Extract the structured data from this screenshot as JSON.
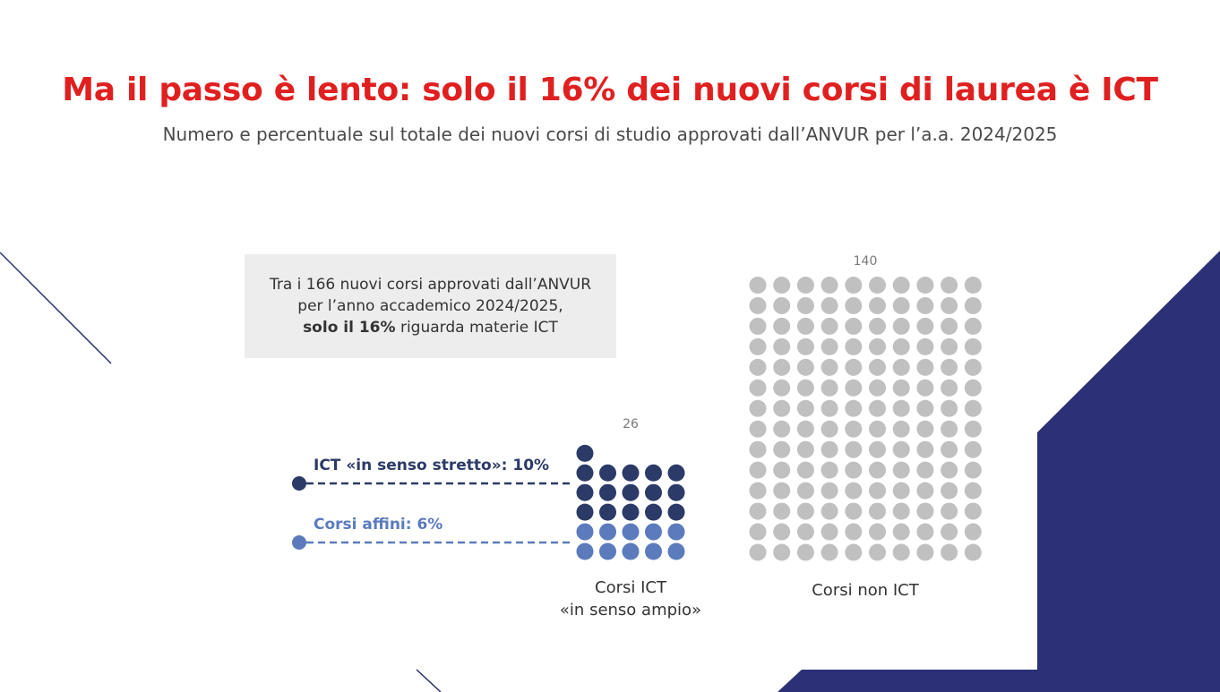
{
  "title": "Ma il passo è lento: solo il 16% dei nuovi corsi di laurea è ICT",
  "subtitle": "Numero e percentuale sul totale dei nuovi corsi di studio approvati dall’ANVUR per l’a.a. 2024/2025",
  "callout": {
    "line1": "Tra i 166 nuovi corsi approvati dall’ANVUR",
    "line2": "per l’anno accademico 2024/2025,",
    "line3_bold": "solo il 16%",
    "line3_rest": " riguarda materie ICT"
  },
  "colors": {
    "title": "#e02020",
    "ict_strict": "#2b3a67",
    "ict_related": "#5b7bbd",
    "non_ict": "#c0c0c0",
    "accent": "#2c3077"
  },
  "chart_data": {
    "type": "waffle",
    "total": 166,
    "groups": [
      {
        "label_line1": "Corsi ICT",
        "label_line2": "«in senso ampio»",
        "count": 26,
        "count_label": "26",
        "segments": [
          {
            "name": "ICT «in senso stretto»: 10%",
            "count": 16,
            "color": "#2b3a67"
          },
          {
            "name": "Corsi affini: 6%",
            "count": 10,
            "color": "#5b7bbd"
          }
        ]
      },
      {
        "label_line1": "Corsi non ICT",
        "label_line2": "",
        "count": 140,
        "count_label": "140",
        "segments": [
          {
            "name": "",
            "count": 140,
            "color": "#c0c0c0"
          }
        ]
      }
    ]
  }
}
